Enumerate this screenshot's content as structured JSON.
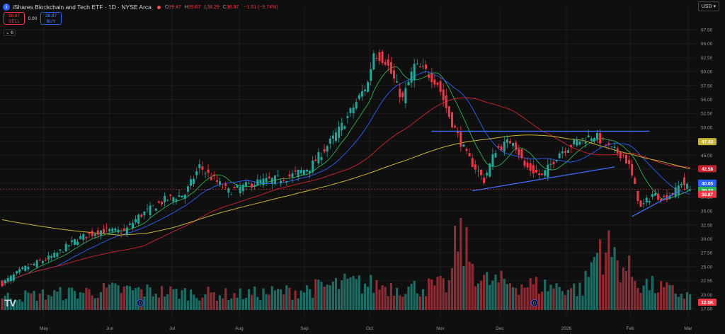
{
  "header": {
    "logo": "i",
    "title": "iShares Blockchain and Tech ETF · 1D · NYSE Arca",
    "ohlc": [
      {
        "k": "O",
        "v": "39.47"
      },
      {
        "k": "H",
        "v": "39.67"
      },
      {
        "k": "L",
        "v": "38.29"
      },
      {
        "k": "C",
        "v": "38.87"
      }
    ],
    "change": "−1.51 (−3.74%)"
  },
  "trade": {
    "sell_price": "38.87",
    "sell_label": "SELL",
    "spread": "0.00",
    "buy_price": "38.87",
    "buy_label": "BUY"
  },
  "indicators_toggle": "6",
  "currency": "USD",
  "watermark": "TV",
  "colors": {
    "up": "#26a69a",
    "down": "#f23645",
    "ma_fast": "#2db255",
    "ma_mid": "#2962ff",
    "ma_slow": "#c2222d",
    "ma_long": "#c7b534",
    "trendline": "#3d6bff",
    "background": "#0f0f0f"
  },
  "chart_data": {
    "type": "candlestick",
    "y_ticks": [
      "67.50",
      "65.00",
      "62.50",
      "60.00",
      "57.50",
      "55.00",
      "52.50",
      "50.00",
      "47.50",
      "45.00",
      "42.50",
      "40.00",
      "37.50",
      "35.00",
      "32.50",
      "30.00",
      "27.50",
      "25.00",
      "22.50",
      "20.00",
      "17.50"
    ],
    "x_labels": [
      "May",
      "Jun",
      "Jul",
      "Aug",
      "Sep",
      "Oct",
      "Nov",
      "Dec",
      "2026",
      "Feb",
      "Mar"
    ],
    "ylim": [
      17.5,
      67.5
    ],
    "badges": [
      {
        "value": "47.43",
        "color": "#c7b534"
      },
      {
        "value": "42.58",
        "color": "#c2222d"
      },
      {
        "value": "40.05",
        "color": "#2962ff"
      },
      {
        "value": "39.22",
        "color": "#2db255"
      },
      {
        "value": "38.87",
        "color": "#f23645"
      },
      {
        "value": "12.5K",
        "color": "#f23645"
      }
    ],
    "price_line": 38.87,
    "ohlc_waypoints": [
      [
        0,
        22.0
      ],
      [
        8,
        24.8
      ],
      [
        18,
        27.0
      ],
      [
        26,
        30.0
      ],
      [
        34,
        31.5
      ],
      [
        42,
        31.3
      ],
      [
        47,
        34.0
      ],
      [
        56,
        37.0
      ],
      [
        63,
        38.0
      ],
      [
        68,
        43.0
      ],
      [
        72,
        41.0
      ],
      [
        78,
        38.5
      ],
      [
        88,
        40.2
      ],
      [
        98,
        41.0
      ],
      [
        106,
        42.8
      ],
      [
        114,
        48.0
      ],
      [
        118,
        51.0
      ],
      [
        126,
        58.0
      ],
      [
        128,
        63.5
      ],
      [
        132,
        62.0
      ],
      [
        138,
        55.0
      ],
      [
        142,
        61.0
      ],
      [
        146,
        60.0
      ],
      [
        150,
        58.0
      ],
      [
        154,
        52.0
      ],
      [
        160,
        45.0
      ],
      [
        166,
        40.5
      ],
      [
        170,
        46.0
      ],
      [
        176,
        47.8
      ],
      [
        180,
        43.0
      ],
      [
        186,
        41.2
      ],
      [
        192,
        45.5
      ],
      [
        198,
        47.5
      ],
      [
        204,
        48.6
      ],
      [
        210,
        46.0
      ],
      [
        214,
        45.0
      ],
      [
        216,
        43.0
      ],
      [
        220,
        35.5
      ],
      [
        224,
        38.0
      ],
      [
        228,
        37.3
      ],
      [
        232,
        38.6
      ],
      [
        234,
        40.2
      ],
      [
        237,
        38.87
      ]
    ],
    "volume_waypoints": [
      [
        0,
        2.2
      ],
      [
        20,
        2.8
      ],
      [
        40,
        3.5
      ],
      [
        60,
        3.0
      ],
      [
        80,
        2.6
      ],
      [
        100,
        3.2
      ],
      [
        120,
        4.6
      ],
      [
        140,
        3.8
      ],
      [
        154,
        4.2
      ],
      [
        157,
        13.0
      ],
      [
        165,
        5.0
      ],
      [
        180,
        4.4
      ],
      [
        200,
        3.6
      ],
      [
        206,
        11.5
      ],
      [
        220,
        4.6
      ],
      [
        237,
        2.4
      ]
    ],
    "volume_scale_label": "12.5K",
    "moving_averages": [
      {
        "id": "ma_fast",
        "window": 10
      },
      {
        "id": "ma_mid",
        "window": 20
      },
      {
        "id": "ma_slow",
        "window": 50
      },
      {
        "id": "ma_long",
        "window": 200
      }
    ],
    "trendlines": [
      {
        "from": [
          "2025-10-31",
          49.3
        ],
        "to": [
          "2026-02-13",
          49.3
        ]
      },
      {
        "from": [
          "2025-11-20",
          38.6
        ],
        "to": [
          "2026-01-28",
          42.9
        ]
      },
      {
        "from": [
          "2026-02-05",
          34.0
        ],
        "to": [
          "2026-02-27",
          38.5
        ]
      }
    ]
  }
}
